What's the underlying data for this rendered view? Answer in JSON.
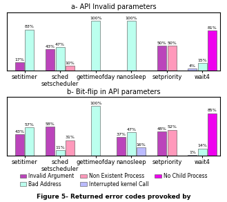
{
  "caption": "Figure 5- Returned error codes provoked by",
  "chart_data": [
    {
      "type": "bar",
      "title": "a- API Invalid parameters",
      "categories": [
        "setitimer",
        "sched\nsetscheduler",
        "gettimeofday",
        "nanosleep",
        "setpriority",
        "wait4"
      ],
      "series": [
        {
          "name": "Invalid Argument",
          "color": "#BB44BB"
        },
        {
          "name": "Bad Address",
          "color": "#BBFFEE"
        },
        {
          "name": "Non Existent Process",
          "color": "#FF99BB"
        },
        {
          "name": "Interrupted kernel Call",
          "color": "#BBBBFF"
        },
        {
          "name": "No Child Process",
          "color": "#EE00EE"
        }
      ],
      "groups": [
        [
          {
            "series": "Invalid Argument",
            "value": 17,
            "value_label": "17%"
          },
          {
            "series": "Bad Address",
            "value": 83,
            "value_label": "83%"
          }
        ],
        [
          {
            "series": "Invalid Argument",
            "value": 43,
            "value_label": "43%"
          },
          {
            "series": "Bad Address",
            "value": 47,
            "value_label": "47%"
          },
          {
            "series": "Non Existent Process",
            "value": 10,
            "value_label": "10%"
          }
        ],
        [
          {
            "series": "Bad Address",
            "value": 100,
            "value_label": "100%"
          }
        ],
        [
          {
            "series": "Bad Address",
            "value": 100,
            "value_label": "100%"
          }
        ],
        [
          {
            "series": "Invalid Argument",
            "value": 50,
            "value_label": "50%"
          },
          {
            "series": "Non Existent Process",
            "value": 50,
            "value_label": "50%"
          }
        ],
        [
          {
            "series": "Interrupted kernel Call",
            "value": 4,
            "value_label": "4%"
          },
          {
            "series": "Bad Address",
            "value": 15,
            "value_label": "15%"
          },
          {
            "series": "No Child Process",
            "value": 81,
            "value_label": "81%"
          }
        ]
      ],
      "ylim": [
        0,
        118
      ],
      "tick_labels": "x",
      "data_labels": true,
      "legend": "lower center"
    },
    {
      "type": "bar",
      "title": "b- Bit-flip in API parameters",
      "categories": [
        "setitimer",
        "sched\nsetscheduler",
        "gettimeofday",
        "nanosleep",
        "setpriority",
        "wait4"
      ],
      "series": [
        {
          "name": "Invalid Argument",
          "color": "#BB44BB"
        },
        {
          "name": "Bad Address",
          "color": "#BBFFEE"
        },
        {
          "name": "Non Existent Process",
          "color": "#FF99BB"
        },
        {
          "name": "Interrupted kernel Call",
          "color": "#BBBBFF"
        },
        {
          "name": "No Child Process",
          "color": "#EE00EE"
        }
      ],
      "groups": [
        [
          {
            "series": "Invalid Argument",
            "value": 43,
            "value_label": "43%"
          },
          {
            "series": "Bad Address",
            "value": 57,
            "value_label": "57%"
          }
        ],
        [
          {
            "series": "Invalid Argument",
            "value": 58,
            "value_label": "58%"
          },
          {
            "series": "Bad Address",
            "value": 11,
            "value_label": "11%"
          },
          {
            "series": "Non Existent Process",
            "value": 31,
            "value_label": "31%"
          }
        ],
        [
          {
            "series": "Bad Address",
            "value": 100,
            "value_label": "100%"
          }
        ],
        [
          {
            "series": "Invalid Argument",
            "value": 37,
            "value_label": "37%"
          },
          {
            "series": "Bad Address",
            "value": 47,
            "value_label": "47%"
          },
          {
            "series": "Interrupted kernel Call",
            "value": 16,
            "value_label": "16%"
          }
        ],
        [
          {
            "series": "Invalid Argument",
            "value": 48,
            "value_label": "48%"
          },
          {
            "series": "Non Existent Process",
            "value": 52,
            "value_label": "52%"
          }
        ],
        [
          {
            "series": "Interrupted kernel Call",
            "value": 1,
            "value_label": "1%"
          },
          {
            "series": "Bad Address",
            "value": 14,
            "value_label": "14%"
          },
          {
            "series": "No Child Process",
            "value": 85,
            "value_label": "85%"
          }
        ]
      ],
      "ylim": [
        0,
        118
      ],
      "tick_labels": "x",
      "data_labels": true
    }
  ]
}
